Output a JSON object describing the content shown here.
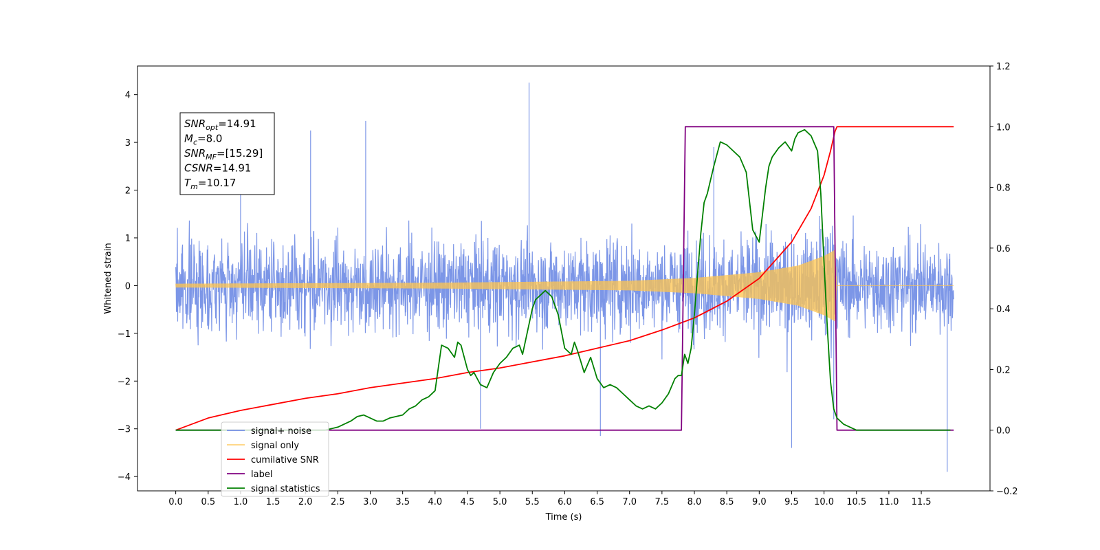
{
  "chart_data": {
    "type": "line",
    "title": "",
    "xlabel": "Time (s)",
    "ylabel": "Whitened strain",
    "y2label": "",
    "xlim": [
      -0.59,
      12.56
    ],
    "ylim": [
      -4.3,
      4.6
    ],
    "y2lim": [
      -0.2,
      1.2
    ],
    "xticks": [
      0.0,
      0.5,
      1.0,
      1.5,
      2.0,
      2.5,
      3.0,
      3.5,
      4.0,
      4.5,
      5.0,
      5.5,
      6.0,
      6.5,
      7.0,
      7.5,
      8.0,
      8.5,
      9.0,
      9.5,
      10.0,
      10.5,
      11.0,
      11.5
    ],
    "xtick_labels": [
      "0.0",
      "0.5",
      "1.0",
      "1.5",
      "2.0",
      "2.5",
      "3.0",
      "3.5",
      "4.0",
      "4.5",
      "5.0",
      "5.5",
      "6.0",
      "6.5",
      "7.0",
      "7.5",
      "8.0",
      "8.5",
      "9.0",
      "9.5",
      "10.0",
      "10.5",
      "11.0",
      "11.5"
    ],
    "yticks": [
      -4,
      -3,
      -2,
      -1,
      0,
      1,
      2,
      3,
      4
    ],
    "ytick_labels": [
      "−4",
      "−3",
      "−2",
      "−1",
      "0",
      "1",
      "2",
      "3",
      "4"
    ],
    "y2ticks": [
      -0.2,
      0.0,
      0.2,
      0.4,
      0.6,
      0.8,
      1.0,
      1.2
    ],
    "y2tick_labels": [
      "−0.2",
      "0.0",
      "0.2",
      "0.4",
      "0.6",
      "0.8",
      "1.0",
      "1.2"
    ],
    "grid": false,
    "legend_position": "lower-left",
    "annotation_box": [
      {
        "sym": "SNR",
        "sub": "opt",
        "rest": "=14.91"
      },
      {
        "sym": "M",
        "sub": "c",
        "rest": "=8.0"
      },
      {
        "sym": "SNR",
        "sub": "MF",
        "rest": "=[15.29]"
      },
      {
        "sym": "CSNR",
        "sub": "",
        "rest": "=14.91"
      },
      {
        "sym": "T",
        "sub": "m",
        "rest": "=10.17"
      }
    ],
    "series": [
      {
        "name": "signal+ noise",
        "axis": "left",
        "color": "#7590e6",
        "kind": "noise",
        "x_range": [
          0.0,
          12.0
        ],
        "envelope_typical": 1.5,
        "peaks": [
          [
            5.45,
            4.25
          ],
          [
            2.93,
            3.45
          ],
          [
            2.08,
            3.25
          ],
          [
            10.15,
            -2.8
          ],
          [
            9.5,
            -3.4
          ],
          [
            11.9,
            -3.9
          ],
          [
            4.7,
            -3.0
          ],
          [
            6.55,
            -3.15
          ],
          [
            8.3,
            2.9
          ],
          [
            1.0,
            2.9
          ]
        ]
      },
      {
        "name": "signal only",
        "axis": "left",
        "color": "#ffc44d",
        "kind": "chirp",
        "x_range": [
          0.0,
          12.0
        ],
        "merger_time": 10.17,
        "amplitude_envelope": [
          [
            0.0,
            0.04
          ],
          [
            4.0,
            0.06
          ],
          [
            7.0,
            0.1
          ],
          [
            8.0,
            0.16
          ],
          [
            9.0,
            0.28
          ],
          [
            9.6,
            0.42
          ],
          [
            10.0,
            0.62
          ],
          [
            10.17,
            0.75
          ],
          [
            10.2,
            0.0
          ],
          [
            12.0,
            0.0
          ]
        ]
      },
      {
        "name": "cumilative SNR",
        "axis": "right",
        "color": "#ff0000",
        "x": [
          0.0,
          0.5,
          1.0,
          1.5,
          2.0,
          2.5,
          3.0,
          3.5,
          4.0,
          4.5,
          5.0,
          5.5,
          6.0,
          6.5,
          7.0,
          7.5,
          8.0,
          8.5,
          9.0,
          9.5,
          9.8,
          10.0,
          10.1,
          10.17,
          10.2,
          12.0
        ],
        "y": [
          0.0,
          0.04,
          0.065,
          0.085,
          0.105,
          0.12,
          0.14,
          0.155,
          0.17,
          0.19,
          0.205,
          0.225,
          0.245,
          0.27,
          0.295,
          0.33,
          0.37,
          0.425,
          0.5,
          0.62,
          0.73,
          0.84,
          0.92,
          0.985,
          1.0,
          1.0
        ]
      },
      {
        "name": "label",
        "axis": "right",
        "color": "#800080",
        "x": [
          0.0,
          7.8,
          7.86,
          10.15,
          10.2,
          12.0
        ],
        "y": [
          0.0,
          0.0,
          1.0,
          1.0,
          0.0,
          0.0
        ]
      },
      {
        "name": "signal statistics",
        "axis": "right",
        "color": "#008000",
        "x": [
          0.0,
          2.3,
          2.5,
          2.7,
          2.8,
          2.9,
          3.0,
          3.1,
          3.2,
          3.3,
          3.5,
          3.6,
          3.7,
          3.8,
          3.9,
          4.0,
          4.1,
          4.2,
          4.3,
          4.35,
          4.4,
          4.5,
          4.55,
          4.6,
          4.7,
          4.8,
          4.9,
          5.0,
          5.1,
          5.2,
          5.3,
          5.35,
          5.4,
          5.5,
          5.55,
          5.6,
          5.7,
          5.75,
          5.8,
          5.9,
          6.0,
          6.1,
          6.15,
          6.2,
          6.3,
          6.4,
          6.5,
          6.6,
          6.7,
          6.8,
          6.9,
          7.0,
          7.1,
          7.2,
          7.3,
          7.4,
          7.5,
          7.6,
          7.7,
          7.75,
          7.8,
          7.85,
          7.9,
          7.95,
          8.0,
          8.1,
          8.15,
          8.2,
          8.3,
          8.4,
          8.5,
          8.6,
          8.7,
          8.8,
          8.9,
          9.0,
          9.1,
          9.15,
          9.2,
          9.3,
          9.4,
          9.5,
          9.55,
          9.6,
          9.7,
          9.8,
          9.9,
          9.95,
          10.0,
          10.05,
          10.1,
          10.15,
          10.2,
          10.3,
          10.4,
          10.5,
          10.6,
          10.8,
          11.0,
          11.5,
          11.95
        ],
        "y": [
          0.0,
          0.0,
          0.01,
          0.03,
          0.045,
          0.05,
          0.04,
          0.03,
          0.03,
          0.04,
          0.05,
          0.07,
          0.08,
          0.1,
          0.11,
          0.13,
          0.28,
          0.27,
          0.24,
          0.29,
          0.28,
          0.2,
          0.18,
          0.19,
          0.15,
          0.14,
          0.19,
          0.22,
          0.24,
          0.27,
          0.28,
          0.25,
          0.3,
          0.4,
          0.43,
          0.44,
          0.46,
          0.45,
          0.44,
          0.38,
          0.27,
          0.25,
          0.29,
          0.26,
          0.19,
          0.24,
          0.17,
          0.14,
          0.15,
          0.14,
          0.12,
          0.1,
          0.08,
          0.07,
          0.08,
          0.07,
          0.09,
          0.12,
          0.17,
          0.18,
          0.18,
          0.25,
          0.22,
          0.27,
          0.38,
          0.65,
          0.75,
          0.78,
          0.87,
          0.95,
          0.94,
          0.92,
          0.9,
          0.85,
          0.66,
          0.62,
          0.8,
          0.87,
          0.9,
          0.93,
          0.95,
          0.92,
          0.96,
          0.98,
          0.99,
          0.97,
          0.92,
          0.78,
          0.55,
          0.34,
          0.16,
          0.07,
          0.04,
          0.02,
          0.01,
          0.0,
          0.0,
          0.0,
          0.0,
          0.0,
          0.0
        ]
      }
    ]
  }
}
